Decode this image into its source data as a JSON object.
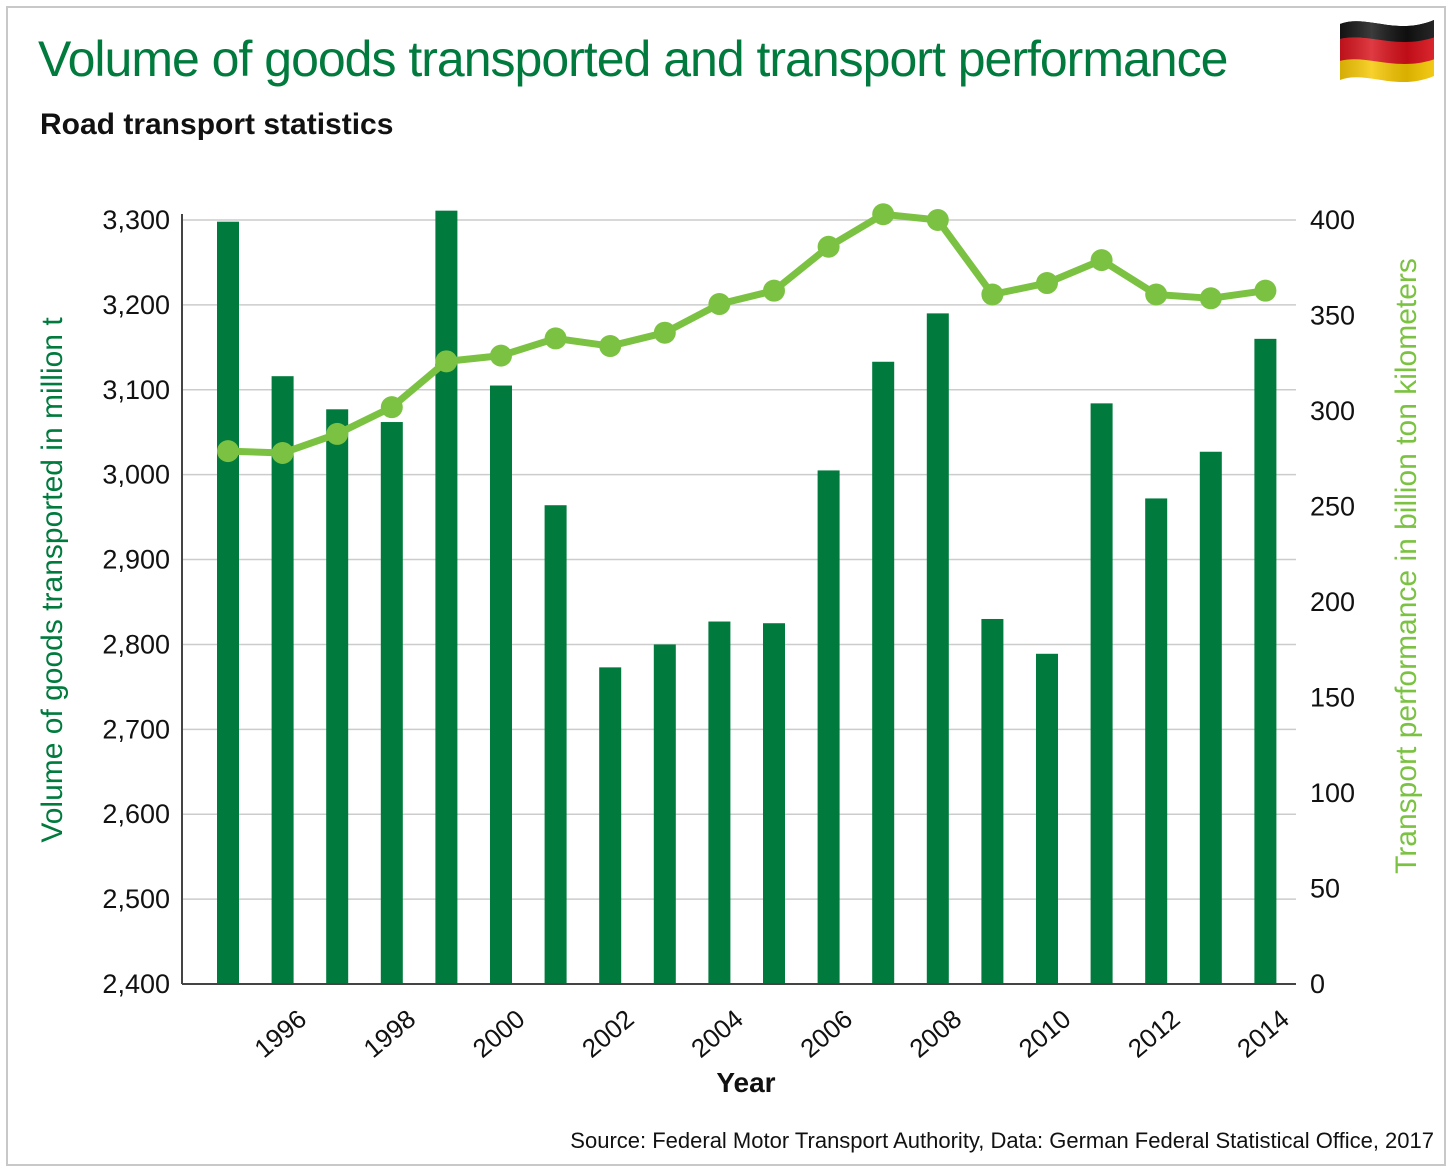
{
  "header": {
    "title": "Volume of goods transported and transport performance",
    "subtitle": "Road transport statistics"
  },
  "footer": {
    "source": "Source: Federal Motor Transport Authority, Data: German Federal Statistical Office, 2017"
  },
  "colors": {
    "title": "#007a3d",
    "bar": "#007a3d",
    "line": "#7cc242",
    "grid": "#cccccc",
    "axis": "#444444"
  },
  "chart_data": {
    "type": "bar+line",
    "title": "Volume of goods transported and transport performance",
    "subtitle": "Road transport statistics",
    "xlabel": "Year",
    "ylabel_left": "Volume of goods transported in million t",
    "ylabel_right": "Transport performance in billion ton kilometers",
    "categories": [
      1995,
      1996,
      1997,
      1998,
      1999,
      2000,
      2001,
      2002,
      2003,
      2004,
      2005,
      2006,
      2007,
      2008,
      2009,
      2010,
      2011,
      2012,
      2013,
      2014
    ],
    "x_tick_labels": [
      "1996",
      "1998",
      "2000",
      "2002",
      "2004",
      "2006",
      "2008",
      "2010",
      "2012",
      "2014"
    ],
    "ylim_left": [
      2400,
      3300
    ],
    "yticks_left": [
      "2,400",
      "2,500",
      "2,600",
      "2,700",
      "2,800",
      "2,900",
      "3,000",
      "3,100",
      "3,200",
      "3,300"
    ],
    "ylim_right": [
      0,
      400
    ],
    "yticks_right": [
      "0",
      "50",
      "100",
      "150",
      "200",
      "250",
      "300",
      "350",
      "400"
    ],
    "grid": true,
    "series": [
      {
        "name": "Volume of goods transported in million t",
        "type": "bar",
        "axis": "left",
        "values": [
          3298,
          3116,
          3077,
          3062,
          3311,
          3105,
          2964,
          2773,
          2800,
          2827,
          2825,
          3005,
          3133,
          3190,
          2830,
          2789,
          3084,
          2972,
          3027,
          3160
        ]
      },
      {
        "name": "Transport performance in billion ton kilometers",
        "type": "line",
        "axis": "right",
        "values": [
          279,
          278,
          288,
          302,
          326,
          329,
          338,
          334,
          341,
          356,
          363,
          386,
          403,
          400,
          361,
          367,
          379,
          361,
          359,
          363
        ]
      }
    ]
  }
}
